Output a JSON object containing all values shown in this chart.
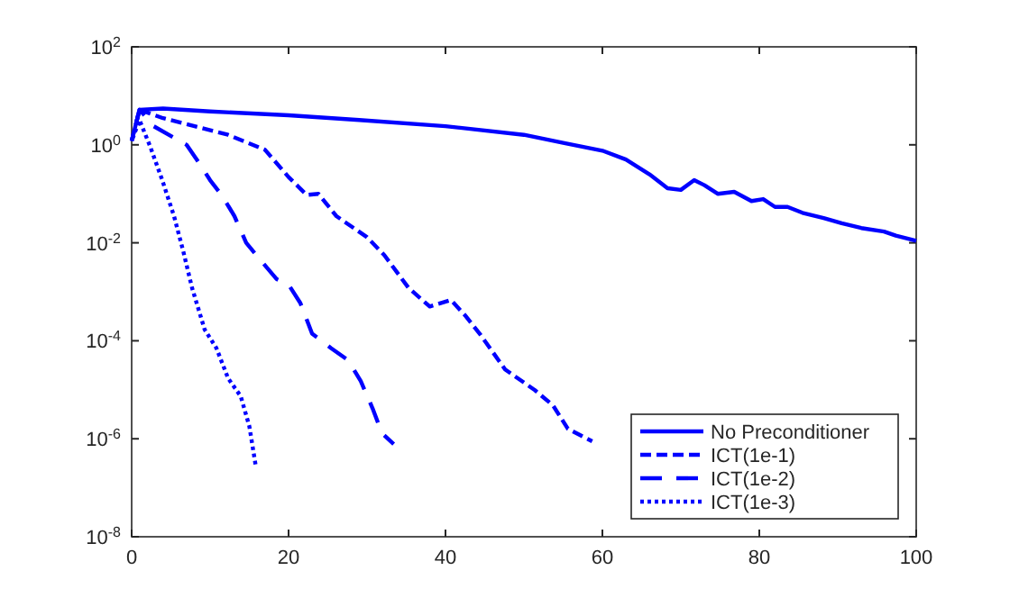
{
  "chart_data": {
    "type": "line",
    "log": "y",
    "grid": false,
    "legend": "bottom right",
    "xlim": [
      0,
      100
    ],
    "xticks": [
      0,
      20,
      40,
      60,
      80,
      100
    ],
    "ylim": [
      1e-08,
      100
    ],
    "yticks": [
      {
        "value": 1e-08,
        "label": "10$^{-8}$"
      },
      {
        "value": 1e-06,
        "label": "10$^{-6}$"
      },
      {
        "value": 0.0001,
        "label": "10$^{-4}$"
      },
      {
        "value": 0.01,
        "label": "10$^{-2}$"
      },
      {
        "value": 1,
        "label": "10$^{0}$"
      },
      {
        "value": 100,
        "label": "10$^{2}$"
      }
    ],
    "series": [
      {
        "name": "No Preconditioner",
        "color": "#0000ff",
        "line_style": "solid",
        "x": [
          0,
          1,
          4,
          10,
          20,
          29,
          40,
          50,
          55,
          60,
          63,
          66,
          68.3,
          70,
          71.7,
          73,
          74.7,
          76.8,
          79,
          80.5,
          82,
          83.6,
          85.5,
          88.2,
          90.5,
          93,
          95.9,
          97.4,
          100
        ],
        "values": [
          1.2,
          5.2,
          5.5,
          4.8,
          4.0,
          3.2,
          2.4,
          1.6,
          1.1,
          0.76,
          0.5,
          0.25,
          0.13,
          0.12,
          0.19,
          0.15,
          0.1,
          0.11,
          0.071,
          0.078,
          0.054,
          0.054,
          0.041,
          0.032,
          0.025,
          0.02,
          0.017,
          0.014,
          0.011
        ]
      },
      {
        "name": "ICT(1e-1)",
        "color": "#0000ff",
        "line_style": "dashed",
        "x": [
          0,
          1,
          4,
          12.3,
          17,
          20,
          22.3,
          23.8,
          26.1,
          30,
          32.2,
          35.3,
          38,
          40.7,
          42.5,
          44.5,
          47.6,
          51.4,
          53.7,
          55.6,
          58.7
        ],
        "values": [
          1.2,
          5.2,
          3.5,
          1.6,
          0.79,
          0.22,
          0.095,
          0.1,
          0.035,
          0.013,
          0.0056,
          0.0012,
          0.0005,
          0.00068,
          0.00033,
          0.00013,
          2.6e-05,
          9.8e-06,
          4.8e-06,
          1.6e-06,
          8.9e-07
        ]
      },
      {
        "name": "ICT(1e-2)",
        "color": "#0000ff",
        "line_style": "dashed",
        "x": [
          0,
          1,
          2.8,
          7,
          8.5,
          10,
          11.5,
          13.1,
          14.6,
          16.2,
          18.5,
          20,
          21.5,
          23,
          25.4,
          27.6,
          29.2,
          30.7,
          31.9,
          33.4
        ],
        "values": [
          1.2,
          5.2,
          2.4,
          1.0,
          0.45,
          0.19,
          0.093,
          0.035,
          0.01,
          0.0049,
          0.0018,
          0.0014,
          0.00059,
          0.00014,
          7.1e-05,
          4e-05,
          1.5e-05,
          4.2e-06,
          1.3e-06,
          7.8e-07
        ]
      },
      {
        "name": "ICT(1e-3)",
        "color": "#0000ff",
        "line_style": "dotted",
        "x": [
          0,
          1,
          2.4,
          3.9,
          5.4,
          6.6,
          7.7,
          9.3,
          10.8,
          12.3,
          13.9,
          15,
          15.8
        ],
        "values": [
          1.2,
          3.2,
          0.89,
          0.19,
          0.035,
          0.0065,
          0.0012,
          0.00017,
          7.1e-05,
          1.7e-05,
          7.4e-06,
          1.8e-06,
          2.9e-07
        ]
      }
    ]
  }
}
